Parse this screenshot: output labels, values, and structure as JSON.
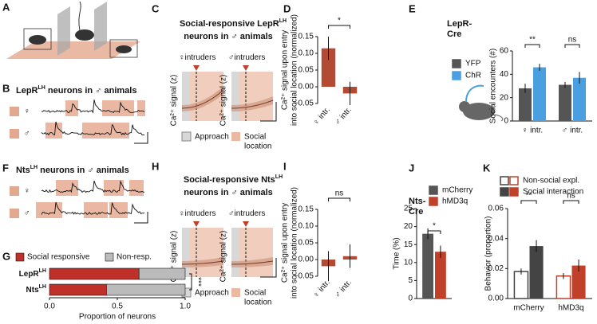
{
  "panel_letters": [
    "A",
    "B",
    "C",
    "D",
    "E",
    "F",
    "G",
    "H",
    "I",
    "J",
    "K"
  ],
  "b": {
    "title": [
      "LepR",
      "LH",
      " neurons in ♂ animals"
    ],
    "rows": [
      "♀",
      "♂"
    ]
  },
  "c": {
    "title": [
      "Social-responsive LepR",
      "LH",
      "neurons in ♂ animals"
    ],
    "plots": [
      {
        "sex": "♀",
        "label": "intruders"
      },
      {
        "sex": "♂",
        "label": "intruders"
      }
    ],
    "ylabel": "Ca²⁺ signal (z)",
    "legend": [
      "Approach",
      [
        "Social",
        "location"
      ]
    ]
  },
  "f": {
    "title": [
      "Nts",
      "LH",
      " neurons in ♂ animals"
    ],
    "rows": [
      "♀",
      "♂"
    ]
  },
  "h": {
    "title": [
      "Social-responsive Nts",
      "LH",
      "neurons in ♂ animals"
    ],
    "plots": [
      {
        "sex": "♀",
        "label": "intruders"
      },
      {
        "sex": "♂",
        "label": "intruders"
      }
    ],
    "ylabel": "Ca²⁺ signal (z)",
    "legend": [
      "Approach",
      [
        "Social",
        "location"
      ]
    ]
  },
  "chart_data": [
    {
      "type": "bar",
      "ylabel": [
        "Ca²⁺ signal upon entry",
        "into social location (normalized)"
      ],
      "categories": [
        "♀ intr.",
        "♂ intr."
      ],
      "values": [
        0.115,
        -0.02
      ],
      "errors": [
        0.035,
        0.035
      ],
      "color": "#b34a32",
      "ylim": [
        -0.05,
        0.15
      ],
      "yticks": [
        {
          "value": -0.05,
          "label": "−0.05"
        },
        {
          "value": 0,
          "label": "0.00"
        },
        0.05,
        {
          "value": 0.1,
          "label": "0.10"
        },
        0.15
      ],
      "significance": "*"
    },
    {
      "type": "bar",
      "title": [
        "LepR-",
        "Cre"
      ],
      "ylabel": "Social encounters (#)",
      "categories": [
        "♀ intr.",
        "♂ intr."
      ],
      "series": [
        {
          "name": "YFP",
          "color": "#555555",
          "values": [
            28,
            31
          ],
          "errors": [
            4,
            2.5
          ]
        },
        {
          "name": "ChR",
          "color": "#4a9fe0",
          "values": [
            46,
            37
          ],
          "errors": [
            3,
            5
          ]
        }
      ],
      "ylim": [
        0,
        60
      ],
      "yticks": [
        0,
        20,
        40,
        60
      ],
      "significance": [
        "**",
        "ns"
      ]
    },
    {
      "type": "bar",
      "orientation": "horizontal",
      "stacked": true,
      "xlabel": "Proportion of neurons",
      "categories": [
        "LepR",
        "Nts"
      ],
      "category_superscripts": [
        "LH",
        "LH"
      ],
      "series": [
        {
          "name": "Social responsive",
          "color": "#c0302a",
          "values": [
            0.66,
            0.42
          ]
        },
        {
          "name": "Non-resp.",
          "color": "#bbbbbb",
          "values": [
            0.34,
            0.58
          ]
        }
      ],
      "xlim": [
        0,
        1
      ],
      "xticks": [
        {
          "value": 0,
          "label": "0.0"
        },
        {
          "value": 0.5,
          "label": "0.5"
        },
        {
          "value": 1,
          "label": "1.0"
        }
      ],
      "significance": "***"
    },
    {
      "type": "bar",
      "ylabel": [
        "Ca²⁺ signal upon entry",
        "into social location (normalized)"
      ],
      "categories": [
        "♀ intr.",
        "♂ intr."
      ],
      "values": [
        -0.02,
        0.01
      ],
      "errors": [
        0.045,
        0.035
      ],
      "color": "#b34a32",
      "ylim": [
        -0.05,
        0.15
      ],
      "yticks": [
        {
          "value": -0.05,
          "label": "−0.05"
        },
        {
          "value": 0,
          "label": "0.00"
        },
        0.05,
        {
          "value": 0.1,
          "label": "0.10"
        },
        0.15
      ],
      "significance": "ns"
    },
    {
      "type": "bar",
      "title": [
        "Nts-",
        "Cre"
      ],
      "ylabel": "Time (%)",
      "series": [
        {
          "name": "mCherry",
          "color": "#555555",
          "values": [
            18
          ],
          "errors": [
            1.5
          ]
        },
        {
          "name": "hMD3q",
          "color": "#c0402a",
          "values": [
            13
          ],
          "errors": [
            1.7
          ]
        }
      ],
      "ylim": [
        0,
        25
      ],
      "yticks": [
        0,
        5,
        10,
        15,
        20,
        25
      ],
      "significance": "*"
    },
    {
      "type": "bar",
      "ylabel": "Behavior (proportion)",
      "categories": [
        "mCherry",
        "hMD3q"
      ],
      "series": [
        {
          "name": "Non-social expl.",
          "style": "outline",
          "colors": [
            "#444444",
            "#c0402a"
          ],
          "values": [
            0.018,
            0.015
          ],
          "errors": [
            0.002,
            0.002
          ]
        },
        {
          "name": "Social interaction",
          "style": "filled",
          "colors": [
            "#444444",
            "#c0402a"
          ],
          "values": [
            0.035,
            0.022
          ],
          "errors": [
            0.004,
            0.004
          ]
        }
      ],
      "ylim": [
        0,
        0.06
      ],
      "yticks": [
        {
          "value": 0,
          "label": "0.00"
        },
        0.02,
        0.04,
        0.06
      ],
      "significance": [
        "**",
        "ns"
      ]
    }
  ]
}
